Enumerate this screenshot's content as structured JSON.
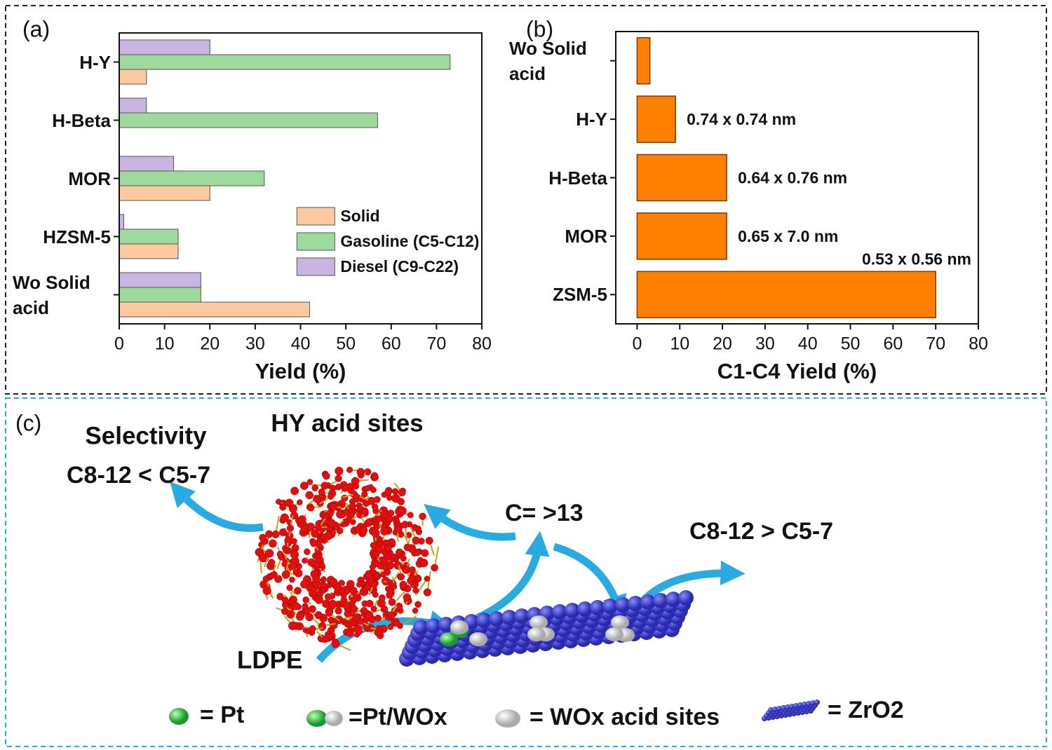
{
  "chart_data": [
    {
      "type": "hbar",
      "panel": "(a)",
      "xlabel": "Yield (%)",
      "categories": [
        "H-Y",
        "H-Beta",
        "MOR",
        "HZSM-5",
        "Wo Solid acid"
      ],
      "series": [
        {
          "name": "Solid",
          "color": "#fdc9a0",
          "values": [
            6,
            0,
            20,
            13,
            42
          ]
        },
        {
          "name": "Gasoline (C5-C12)",
          "color": "#9ed99e",
          "values": [
            73,
            57,
            32,
            13,
            18
          ]
        },
        {
          "name": "Diesel (C9-C22)",
          "color": "#c9b5e2",
          "values": [
            20,
            6,
            12,
            1,
            18
          ]
        }
      ],
      "xlim": [
        0,
        80
      ],
      "xticks": [
        0,
        10,
        20,
        30,
        40,
        50,
        60,
        70,
        80
      ],
      "legend": "right"
    },
    {
      "type": "hbar",
      "panel": "(b)",
      "xlabel": "C1-C4 Yield (%)",
      "categories": [
        "Wo Solid acid",
        "H-Y",
        "H-Beta",
        "MOR",
        "ZSM-5"
      ],
      "values": [
        3,
        9,
        21,
        21,
        70
      ],
      "color": "#ff8000",
      "annotations": [
        {
          "category": "H-Y",
          "text": "0.74 x 0.74 nm"
        },
        {
          "category": "H-Beta",
          "text": "0.64 x 0.76 nm"
        },
        {
          "category": "MOR",
          "text": "0.65 x 7.0 nm"
        },
        {
          "category": "ZSM-5",
          "text": "0.53 x 0.56 nm"
        }
      ],
      "xlim": [
        -5,
        80
      ],
      "xticks": [
        0,
        10,
        20,
        30,
        40,
        50,
        60,
        70,
        80
      ]
    }
  ],
  "diagram": {
    "panel": "(c)",
    "selectivity": "Selectivity",
    "left_result": "C8-12 < C5-7",
    "zeolite": "HY acid sites",
    "intermediate": "C= >13",
    "right_result": "C8-12 > C5-7",
    "feed": "LDPE",
    "legend": [
      "= Pt",
      "=Pt/WOx",
      "= WOx acid sites",
      "= ZrO2"
    ]
  }
}
